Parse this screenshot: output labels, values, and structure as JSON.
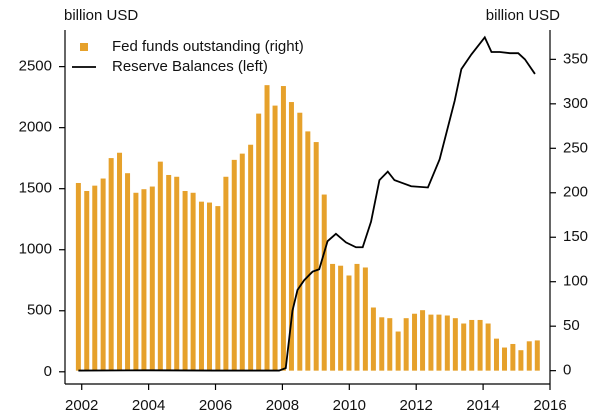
{
  "chart_data": {
    "type": "bar-line",
    "y_label": "billion USD",
    "y2_label": "billion USD",
    "xlim": [
      2001.5,
      2016
    ],
    "xticks": [
      2002,
      2004,
      2006,
      2008,
      2010,
      2012,
      2014,
      2016
    ],
    "ylim": [
      -100,
      2800
    ],
    "yticks": [
      0,
      500,
      1000,
      1500,
      2000,
      2500
    ],
    "y2lim": [
      -15,
      383
    ],
    "y2ticks": [
      0,
      50,
      100,
      150,
      200,
      250,
      300,
      350
    ],
    "legend": "upper left",
    "series": [
      {
        "name": "Fed funds outstanding (right)",
        "type": "bar",
        "axis": "y2",
        "color": "#e6a12b",
        "x": [
          2001.9,
          2002.15,
          2002.39,
          2002.64,
          2002.88,
          2003.13,
          2003.37,
          2003.62,
          2003.86,
          2004.11,
          2004.35,
          2004.6,
          2004.84,
          2005.09,
          2005.33,
          2005.58,
          2005.82,
          2006.07,
          2006.31,
          2006.56,
          2006.8,
          2007.05,
          2007.29,
          2007.54,
          2007.78,
          2008.03,
          2008.27,
          2008.52,
          2008.76,
          2009.01,
          2009.25,
          2009.5,
          2009.74,
          2009.99,
          2010.23,
          2010.48,
          2010.72,
          2010.97,
          2011.21,
          2011.46,
          2011.7,
          2011.95,
          2012.19,
          2012.44,
          2012.68,
          2012.93,
          2013.17,
          2013.42,
          2013.66,
          2013.91,
          2014.15,
          2014.4,
          2014.64,
          2014.89,
          2015.13,
          2015.38,
          2015.62
        ],
        "values": [
          211,
          202,
          208,
          216,
          239,
          245,
          222,
          200,
          204,
          207,
          235,
          220,
          218,
          202,
          200,
          190,
          189,
          185,
          218,
          237,
          244,
          254,
          289,
          321,
          298,
          320,
          302,
          290,
          269,
          257,
          198,
          120,
          118,
          107,
          120,
          116,
          71,
          60,
          59,
          44,
          59,
          64,
          68,
          63,
          63,
          62,
          59,
          53,
          57,
          57,
          53,
          36,
          26,
          30,
          23,
          33,
          34
        ]
      },
      {
        "name": "Reserve Balances (left)",
        "type": "line",
        "axis": "y",
        "color": "#000000",
        "x": [
          2001.9,
          2004,
          2006,
          2007.9,
          2008.1,
          2008.3,
          2008.45,
          2008.65,
          2008.9,
          2009.1,
          2009.35,
          2009.6,
          2009.9,
          2010.2,
          2010.4,
          2010.65,
          2010.9,
          2011.15,
          2011.35,
          2011.55,
          2011.85,
          2012.35,
          2012.7,
          2013.15,
          2013.35,
          2013.65,
          2014.05,
          2014.25,
          2014.5,
          2014.8,
          2015.05,
          2015.25,
          2015.55
        ],
        "values": [
          10,
          12,
          10,
          10,
          30,
          500,
          670,
          750,
          820,
          840,
          1070,
          1130,
          1060,
          1020,
          1020,
          1230,
          1570,
          1640,
          1570,
          1550,
          1520,
          1510,
          1740,
          2220,
          2480,
          2600,
          2740,
          2620,
          2620,
          2610,
          2610,
          2560,
          2440
        ]
      }
    ]
  }
}
